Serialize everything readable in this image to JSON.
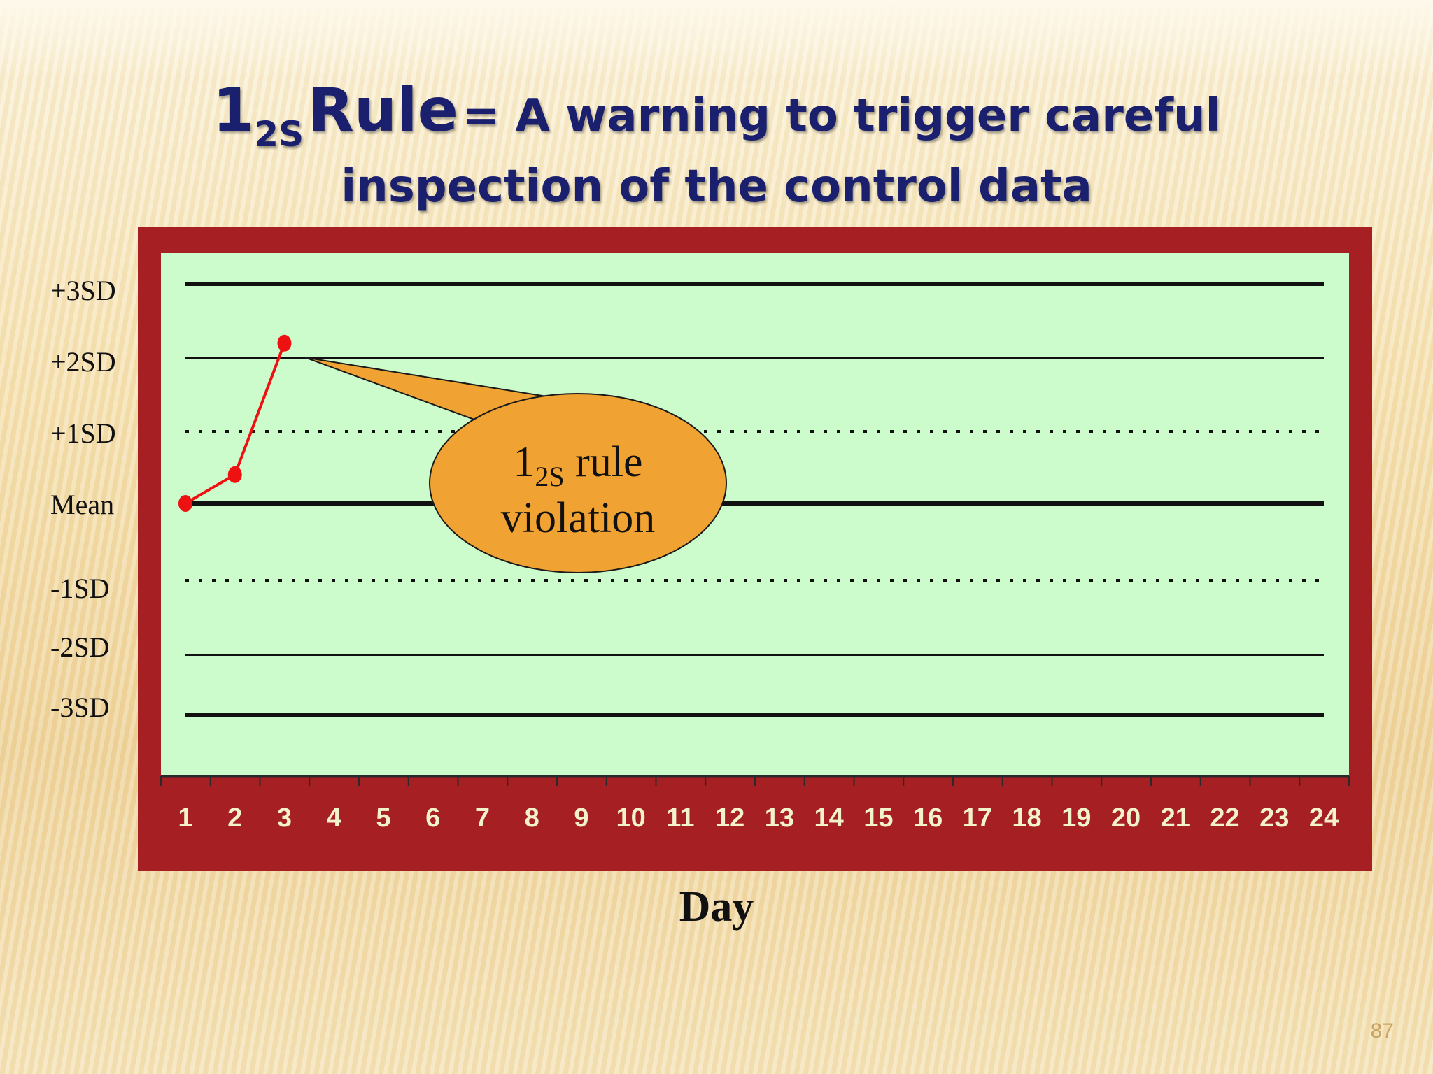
{
  "title": {
    "main_number": "1",
    "main_subscript": "2S",
    "main_word": "Rule",
    "rest_line1": "= A warning to trigger careful",
    "line2": "inspection of the control data"
  },
  "chart_data": {
    "type": "line",
    "title": "",
    "xlabel": "Day",
    "ylabel": "",
    "x": [
      1,
      2,
      3
    ],
    "x_ticks": [
      "1",
      "2",
      "3",
      "4",
      "5",
      "6",
      "7",
      "8",
      "9",
      "10",
      "11",
      "12",
      "13",
      "14",
      "15",
      "16",
      "17",
      "18",
      "19",
      "20",
      "21",
      "22",
      "23",
      "24"
    ],
    "xlim": [
      1,
      24
    ],
    "ylim": [
      -3,
      3
    ],
    "y_levels": [
      {
        "label": "+3SD",
        "value": 3,
        "style": "thick"
      },
      {
        "label": "+2SD",
        "value": 2,
        "style": "thin"
      },
      {
        "label": "+1SD",
        "value": 1,
        "style": "dotted"
      },
      {
        "label": "Mean",
        "value": 0,
        "style": "thick"
      },
      {
        "label": "-1SD",
        "value": -1,
        "style": "dotted"
      },
      {
        "label": "-2SD",
        "value": -2,
        "style": "thin"
      },
      {
        "label": "-3SD",
        "value": -3,
        "style": "thick"
      }
    ],
    "series": [
      {
        "values": [
          0,
          0.4,
          2.2
        ]
      }
    ],
    "annotation": {
      "number": "1",
      "subscript": "2S",
      "line1_rest": "rule",
      "line2": "violation",
      "points_to_day": 3
    },
    "grid": false,
    "legend": "none"
  },
  "colors": {
    "frame": "#a61f23",
    "plot_bg": "#ccfccc",
    "series": "#ee1111",
    "callout": "#f0a232",
    "title": "#1a1f6e",
    "tick_labels": "#f2f2cc"
  },
  "page_number": "87"
}
